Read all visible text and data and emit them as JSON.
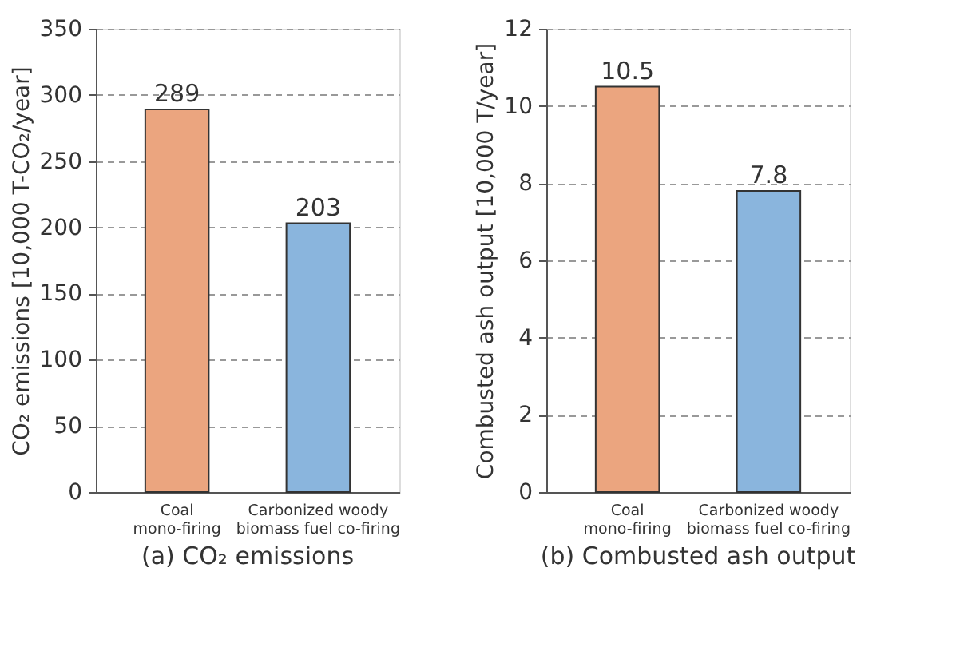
{
  "chart_data": [
    {
      "type": "bar",
      "title": "(a) CO₂ emissions",
      "ylabel": "CO₂ emissions [10,000 T-CO₂/year]",
      "categories": [
        "Coal\nmono-firing",
        "Carbonized woody\nbiomass fuel co-firing"
      ],
      "values": [
        289,
        203
      ],
      "colors": [
        "#eba57f",
        "#8ab5dd"
      ],
      "ylim": [
        0,
        350
      ],
      "yticks": [
        0,
        50,
        100,
        150,
        200,
        250,
        300,
        350
      ],
      "grid": "y",
      "data_labels": true
    },
    {
      "type": "bar",
      "title": "(b) Combusted ash output",
      "ylabel": "Combusted ash output [10,000 T/year]",
      "categories": [
        "Coal\nmono-firing",
        "Carbonized woody\nbiomass fuel co-firing"
      ],
      "values": [
        10.5,
        7.8
      ],
      "colors": [
        "#eba57f",
        "#8ab5dd"
      ],
      "ylim": [
        0,
        12
      ],
      "yticks": [
        0,
        2,
        4,
        6,
        8,
        10,
        12
      ],
      "grid": "y",
      "data_labels": true
    }
  ]
}
